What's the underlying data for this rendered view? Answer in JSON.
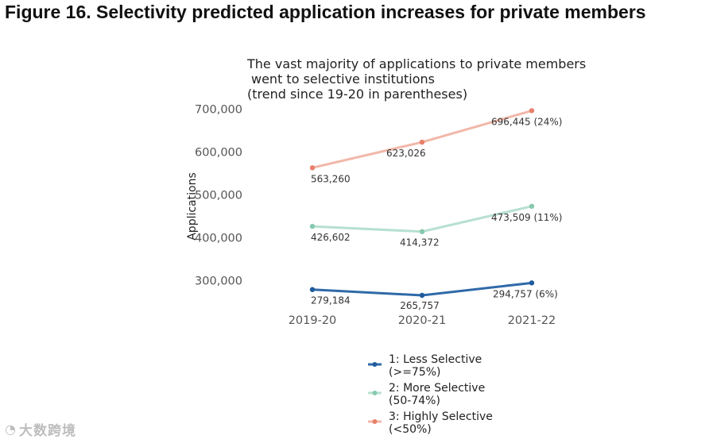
{
  "figure_title": "Figure 16. Selectivity predicted application increases for private members",
  "watermark": {
    "text": "大数跨境",
    "icon": "logo-icon"
  },
  "chart_data": {
    "type": "line",
    "title": [
      "The vast majority of applications to private members",
      "went to selective institutions",
      "(trend since 19-20 in parentheses)"
    ],
    "xlabel": "",
    "ylabel": "Applications",
    "categories": [
      "2019-20",
      "2020-21",
      "2021-22"
    ],
    "ylim": [
      250000,
      720000
    ],
    "yticks": [
      300000,
      400000,
      500000,
      600000,
      700000
    ],
    "ytick_labels": [
      "300,000",
      "400,000",
      "500,000",
      "600,000",
      "700,000"
    ],
    "grid": false,
    "legend_position": "bottom",
    "series": [
      {
        "name": "1: Less Selective (>=75%)",
        "legend_lines": [
          "1: Less Selective",
          "(>=75%)"
        ],
        "values": [
          279184,
          265757,
          294757
        ],
        "labels": [
          "279,184",
          "265,757",
          "294,757 (6%)"
        ],
        "color": "#2f6aa8",
        "point_color": "#1f5b9e"
      },
      {
        "name": "2: More Selective (50-74%)",
        "legend_lines": [
          "2: More Selective",
          "(50-74%)"
        ],
        "values": [
          426602,
          414372,
          473509
        ],
        "labels": [
          "426,602",
          "414,372",
          "473,509 (11%)"
        ],
        "color": "#b7e0d0",
        "point_color": "#87c9af"
      },
      {
        "name": "3: Highly Selective (<50%)",
        "legend_lines": [
          "3: Highly Selective",
          "(<50%)"
        ],
        "values": [
          563260,
          623026,
          696445
        ],
        "labels": [
          "563,260",
          "623,026",
          "696,445 (24%)"
        ],
        "color": "#f2b7a8",
        "point_color": "#e8806a"
      }
    ]
  }
}
